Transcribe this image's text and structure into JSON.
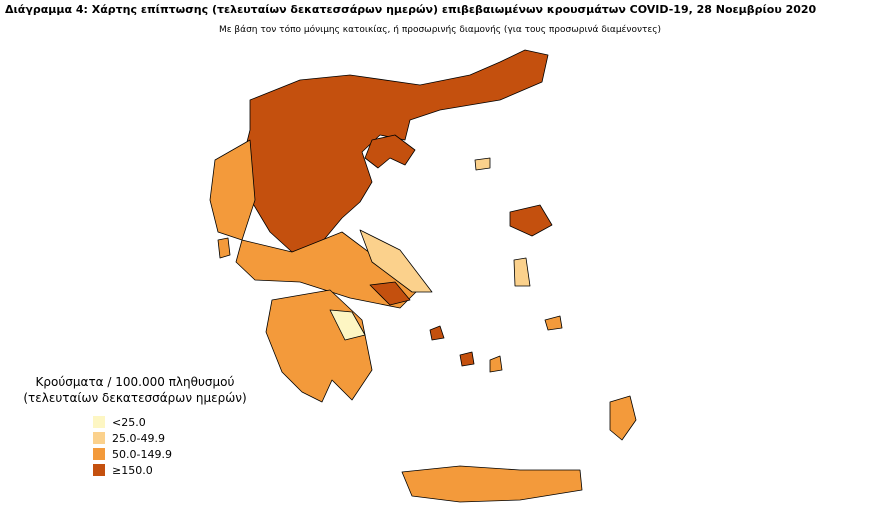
{
  "title": "Διάγραμμα 4: Χάρτης επίπτωσης (τελευταίων δεκατεσσάρων ημερών) επιβεβαιωμένων κρουσμάτων COVID-19, 28 Νοεμβρίου 2020",
  "subtitle": "Με βάση τον τόπο μόνιμης κατοικίας, ή προσωρινής διαμονής (για τους προσωρινά διαμένοντες)",
  "legend": {
    "title": [
      "Κρούσματα / 100.000 πληθυσμού",
      "(τελευταίων δεκατεσσάρων ημερών)"
    ],
    "items": [
      {
        "label": "<25.0",
        "color": "#fdf6c3"
      },
      {
        "label": "25.0-49.9",
        "color": "#fbd18c"
      },
      {
        "label": "50.0-149.9",
        "color": "#f39a3b"
      },
      {
        "label": "≥150.0",
        "color": "#c4500e"
      }
    ]
  }
}
